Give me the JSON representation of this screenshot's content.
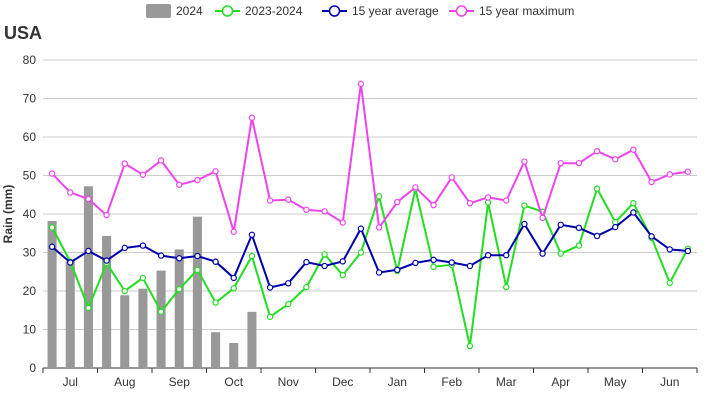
{
  "chart_data": {
    "type": "bar+line",
    "title": "USA",
    "ylabel": "Rain (mm)",
    "xlabel": "",
    "ylim": [
      0,
      80
    ],
    "yticks": [
      0,
      10,
      20,
      30,
      40,
      50,
      60,
      70,
      80
    ],
    "grid": true,
    "legend_position": "top",
    "month_labels": [
      "Jul",
      "Aug",
      "Sep",
      "Oct",
      "Nov",
      "Dec",
      "Jan",
      "Feb",
      "Mar",
      "Apr",
      "May",
      "Jun"
    ],
    "periods_per_month": 3,
    "series": [
      {
        "name": "2024",
        "type": "bar",
        "color": "#999999",
        "values": [
          38.2,
          27.7,
          47.2,
          34.3,
          18.9,
          20.6,
          25.3,
          30.8,
          39.3,
          9.3,
          6.5,
          14.6
        ]
      },
      {
        "name": "2023-2024",
        "type": "line",
        "color": "#22dd22",
        "values": [
          36.5,
          27.6,
          15.6,
          27.2,
          20.0,
          23.4,
          14.6,
          20.5,
          25.5,
          17.0,
          20.7,
          29.1,
          13.3,
          16.6,
          21.0,
          29.5,
          24.1,
          30.0,
          44.6,
          25.2,
          46.5,
          26.3,
          26.8,
          5.7,
          43.0,
          21.0,
          42.2,
          40.6,
          29.7,
          31.8,
          46.6,
          37.9,
          42.8,
          33.8,
          22.1,
          31.0
        ]
      },
      {
        "name": "15 year average",
        "type": "line",
        "color": "#0000aa",
        "values": [
          31.5,
          27.4,
          30.4,
          27.9,
          31.2,
          31.8,
          29.2,
          28.5,
          29.1,
          27.6,
          23.4,
          34.6,
          20.9,
          22.0,
          27.5,
          26.5,
          27.7,
          36.2,
          24.8,
          25.5,
          27.3,
          28.1,
          27.4,
          26.5,
          29.3,
          29.3,
          37.4,
          29.7,
          37.2,
          36.4,
          34.3,
          36.6,
          40.4,
          34.2,
          30.8,
          30.4
        ]
      },
      {
        "name": "15 year maximum",
        "type": "line",
        "color": "#ee44ee",
        "values": [
          50.5,
          45.6,
          43.9,
          39.7,
          53.1,
          50.2,
          53.9,
          47.6,
          48.8,
          51.1,
          35.4,
          65.0,
          43.5,
          43.7,
          41.1,
          40.7,
          37.8,
          73.8,
          36.5,
          43.1,
          46.9,
          42.3,
          49.5,
          42.8,
          44.3,
          43.5,
          53.6,
          39.0,
          53.2,
          53.2,
          56.3,
          54.2,
          56.7,
          48.3,
          50.3,
          51.0
        ]
      }
    ]
  }
}
